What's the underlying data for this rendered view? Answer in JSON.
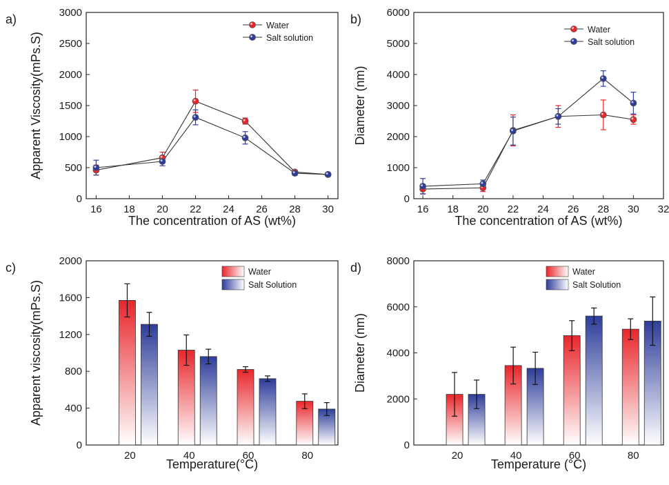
{
  "colors": {
    "water": "#e8262b",
    "salt": "#2e3d9a",
    "line": "#333333"
  },
  "chart_data": [
    {
      "panel": "a)",
      "type": "line",
      "xlabel": "The concentration of AS (wt%)",
      "ylabel": "Apparent Viscosity(mPs.S)",
      "xlim": [
        15.4,
        30.6
      ],
      "ylim": [
        0,
        3000
      ],
      "xticks": [
        16,
        18,
        20,
        22,
        24,
        26,
        28,
        30
      ],
      "yticks": [
        0,
        500,
        1000,
        1500,
        2000,
        2500,
        3000
      ],
      "x": [
        16,
        20,
        22,
        25,
        28,
        30
      ],
      "legend_position": "top-right",
      "series": [
        {
          "name": "Water",
          "values": [
            460,
            660,
            1570,
            1250,
            430,
            390
          ],
          "err": [
            80,
            90,
            180,
            50,
            30,
            20
          ]
        },
        {
          "name": "Salt solution",
          "values": [
            500,
            600,
            1310,
            980,
            410,
            390
          ],
          "err": [
            120,
            70,
            120,
            100,
            30,
            20
          ]
        }
      ]
    },
    {
      "panel": "b)",
      "type": "line",
      "xlabel": "The concentration of AS (wt%)",
      "ylabel": "Diameter (nm)",
      "xlim": [
        15.4,
        32
      ],
      "ylim": [
        0,
        6000
      ],
      "xticks": [
        16,
        18,
        20,
        22,
        24,
        26,
        28,
        30,
        32
      ],
      "yticks": [
        0,
        1000,
        2000,
        3000,
        4000,
        5000,
        6000
      ],
      "x": [
        16,
        20,
        22,
        25,
        28,
        30
      ],
      "legend_position": "top-right",
      "series": [
        {
          "name": "Water",
          "values": [
            310,
            350,
            2200,
            2650,
            2700,
            2550
          ],
          "err": [
            150,
            120,
            500,
            350,
            480,
            150
          ]
        },
        {
          "name": "Salt solution",
          "values": [
            400,
            480,
            2180,
            2650,
            3870,
            3080
          ],
          "err": [
            250,
            120,
            450,
            250,
            250,
            350
          ]
        }
      ]
    },
    {
      "panel": "c)",
      "type": "bar",
      "xlabel": "Temperature(°C)",
      "ylabel": "Apparent viscosity(mPs.S)",
      "categories": [
        "20",
        "40",
        "60",
        "80"
      ],
      "ylim": [
        0,
        2000
      ],
      "yticks": [
        0,
        400,
        800,
        1200,
        1600,
        2000
      ],
      "legend_position": "top-right",
      "series": [
        {
          "name": "Water",
          "values": [
            1570,
            1030,
            820,
            475
          ],
          "err": [
            180,
            165,
            30,
            80
          ]
        },
        {
          "name": "Salt Solution",
          "values": [
            1310,
            960,
            720,
            390
          ],
          "err": [
            130,
            80,
            30,
            70
          ]
        }
      ]
    },
    {
      "panel": "d)",
      "type": "bar",
      "xlabel": "Temperature (°C)",
      "ylabel": "Diameter (nm)",
      "categories": [
        "20",
        "40",
        "60",
        "80"
      ],
      "ylim": [
        0,
        8000
      ],
      "yticks": [
        0,
        2000,
        4000,
        6000,
        8000
      ],
      "legend_position": "top-right",
      "series": [
        {
          "name": "Water",
          "values": [
            2200,
            3450,
            4750,
            5030
          ],
          "err": [
            950,
            800,
            650,
            450
          ]
        },
        {
          "name": "Salt Solution",
          "values": [
            2200,
            3330,
            5600,
            5380
          ],
          "err": [
            620,
            700,
            350,
            1050
          ]
        }
      ]
    }
  ]
}
